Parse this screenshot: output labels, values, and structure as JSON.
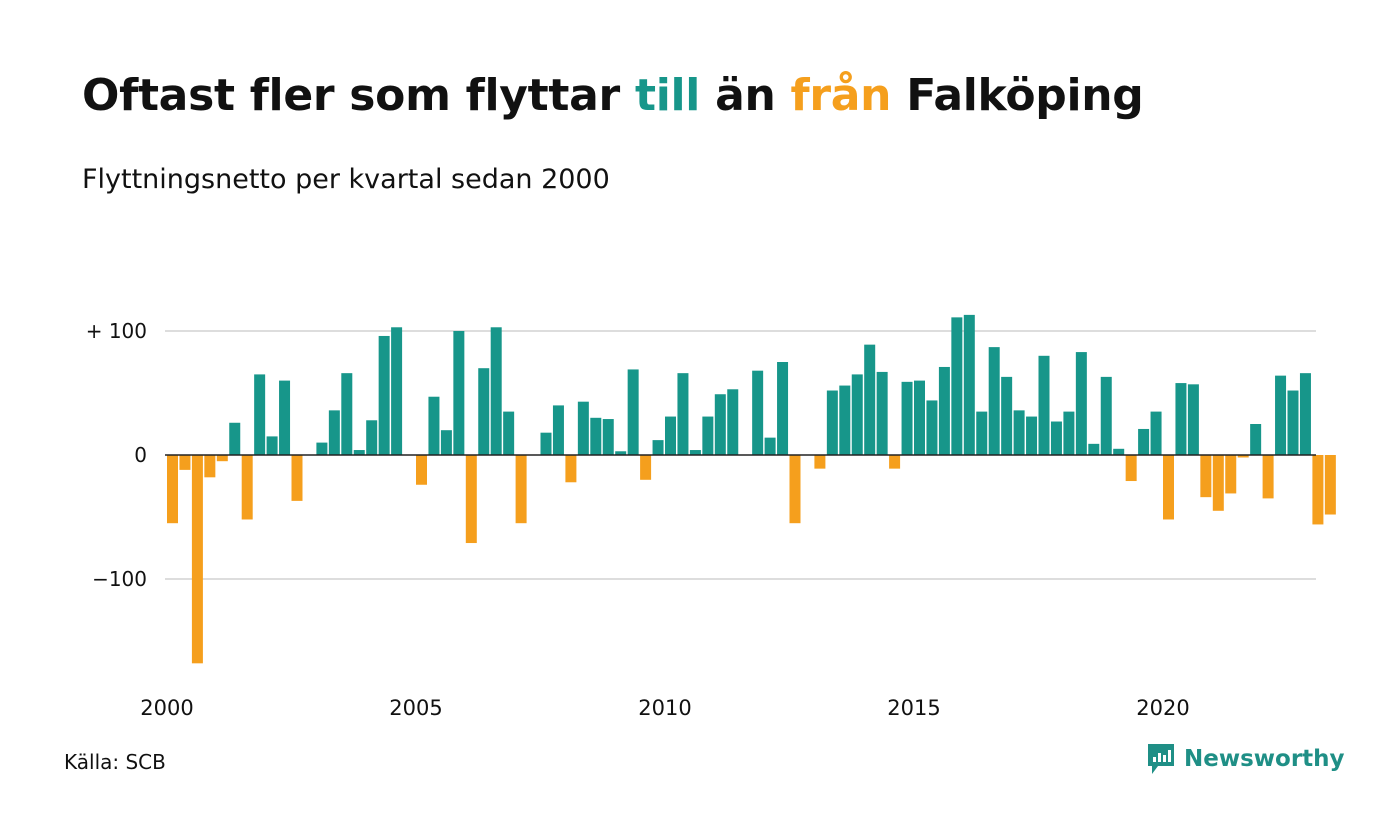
{
  "header": {
    "title_part1": "Oftast fler som flyttar ",
    "title_till": "till",
    "title_part2": " än ",
    "title_fran": "från",
    "title_part3": " Falköping",
    "subtitle": "Flyttningsnetto per kvartal sedan 2000"
  },
  "footer": {
    "source": "Källa: SCB",
    "brand": "Newsworthy",
    "brand_icon": "newsworthy-logo-icon"
  },
  "colors": {
    "positive": "#17968a",
    "negative": "#f59f1d",
    "gridline": "#dddddd",
    "zeroline": "#222222"
  },
  "chart_data": {
    "type": "bar",
    "title": "Oftast fler som flyttar till än från Falköping",
    "subtitle": "Flyttningsnetto per kvartal sedan 2000",
    "xlabel": "",
    "ylabel": "",
    "ylim": [
      -170,
      125
    ],
    "y_ticks": [
      {
        "value": 100,
        "label": "+ 100"
      },
      {
        "value": 0,
        "label": "0"
      },
      {
        "value": -100,
        "label": "−100"
      }
    ],
    "x_ticks": [
      {
        "value": 2000,
        "label": "2000"
      },
      {
        "value": 2005,
        "label": "2005"
      },
      {
        "value": 2010,
        "label": "2010"
      },
      {
        "value": 2015,
        "label": "2015"
      },
      {
        "value": 2020,
        "label": "2020"
      }
    ],
    "grid": true,
    "legend": "none",
    "categories": [
      "2000 Q1",
      "2000 Q2",
      "2000 Q3",
      "2000 Q4",
      "2001 Q1",
      "2001 Q2",
      "2001 Q3",
      "2001 Q4",
      "2002 Q1",
      "2002 Q2",
      "2002 Q3",
      "2002 Q4",
      "2003 Q1",
      "2003 Q2",
      "2003 Q3",
      "2003 Q4",
      "2004 Q1",
      "2004 Q2",
      "2004 Q3",
      "2004 Q4",
      "2005 Q1",
      "2005 Q2",
      "2005 Q3",
      "2005 Q4",
      "2006 Q1",
      "2006 Q2",
      "2006 Q3",
      "2006 Q4",
      "2007 Q1",
      "2007 Q2",
      "2007 Q3",
      "2007 Q4",
      "2008 Q1",
      "2008 Q2",
      "2008 Q3",
      "2008 Q4",
      "2009 Q1",
      "2009 Q2",
      "2009 Q3",
      "2009 Q4",
      "2010 Q1",
      "2010 Q2",
      "2010 Q3",
      "2010 Q4",
      "2011 Q1",
      "2011 Q2",
      "2011 Q3",
      "2011 Q4",
      "2012 Q1",
      "2012 Q2",
      "2012 Q3",
      "2012 Q4",
      "2013 Q1",
      "2013 Q2",
      "2013 Q3",
      "2013 Q4",
      "2014 Q1",
      "2014 Q2",
      "2014 Q3",
      "2014 Q4",
      "2015 Q1",
      "2015 Q2",
      "2015 Q3",
      "2015 Q4",
      "2016 Q1",
      "2016 Q2",
      "2016 Q3",
      "2016 Q4",
      "2017 Q1",
      "2017 Q2",
      "2017 Q3",
      "2017 Q4",
      "2018 Q1",
      "2018 Q2",
      "2018 Q3",
      "2018 Q4",
      "2019 Q1",
      "2019 Q2",
      "2019 Q3",
      "2019 Q4",
      "2020 Q1",
      "2020 Q2",
      "2020 Q3",
      "2020 Q4",
      "2021 Q1",
      "2021 Q2",
      "2021 Q3",
      "2021 Q4",
      "2022 Q1",
      "2022 Q2",
      "2022 Q3",
      "2022 Q4",
      "2023 Q1",
      "2023 Q2"
    ],
    "series": [
      {
        "values": [
          -55,
          -12,
          -168,
          -18,
          -5,
          26,
          -52,
          65,
          15,
          60,
          -37,
          0,
          10,
          36,
          66,
          4,
          28,
          96,
          103,
          0,
          -24,
          47,
          20,
          100,
          -71,
          70,
          103,
          35,
          -55,
          0,
          18,
          40,
          -22,
          43,
          30,
          29,
          3,
          69,
          -20,
          12,
          31,
          66,
          4,
          31,
          49,
          53,
          0,
          68,
          14,
          75,
          -55,
          0,
          -11,
          52,
          56,
          65,
          89,
          67,
          -11,
          59,
          60,
          44,
          71,
          111,
          113,
          35,
          87,
          63,
          36,
          31,
          80,
          27,
          35,
          83,
          9,
          63,
          5,
          -21,
          21,
          35,
          -52,
          58,
          57,
          -34,
          -45,
          -31,
          -2,
          25,
          -35,
          64,
          52,
          66,
          -56,
          -48
        ]
      }
    ]
  }
}
